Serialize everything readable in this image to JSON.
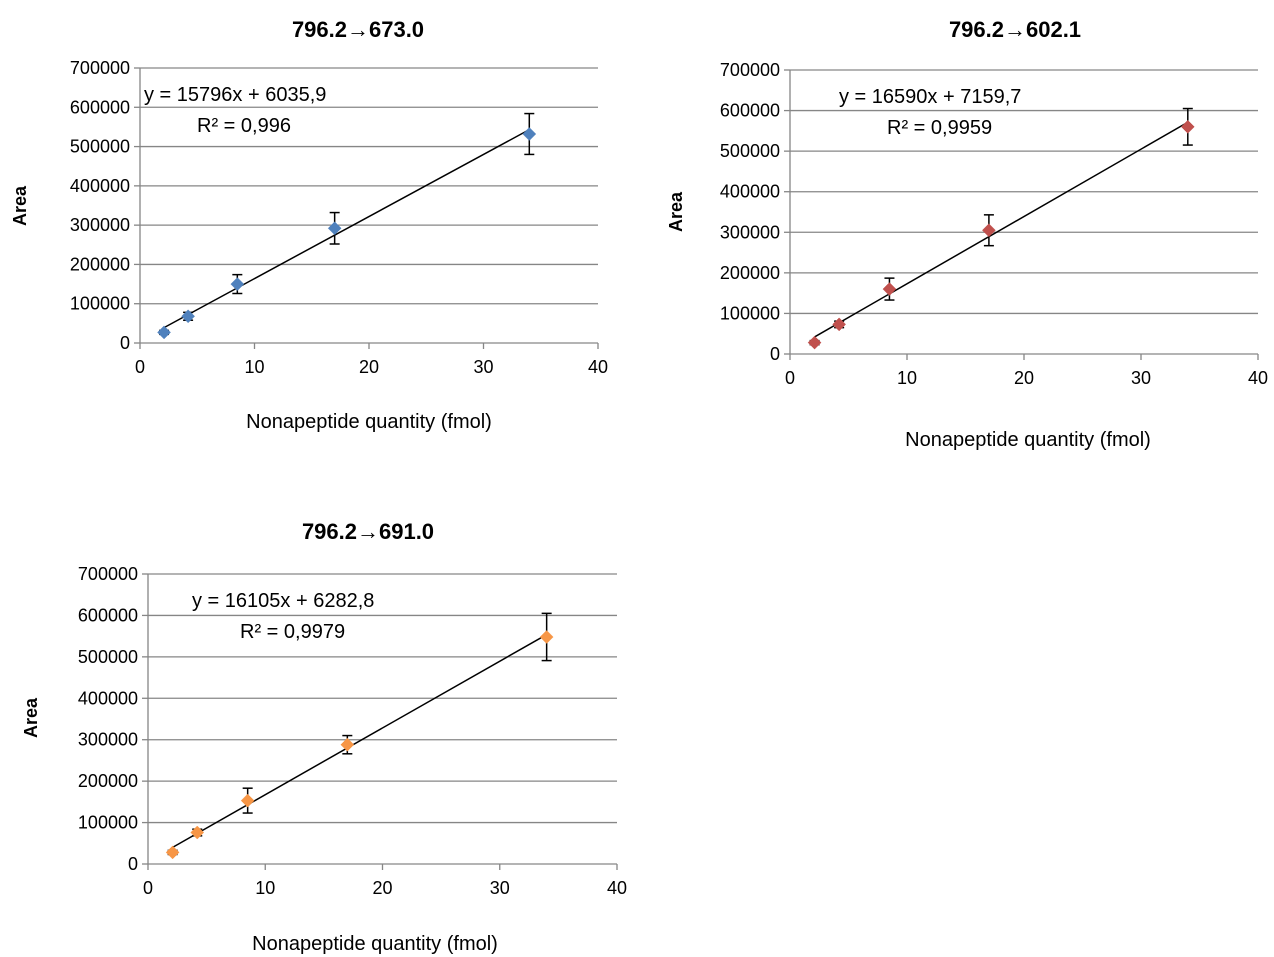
{
  "chart_data": [
    {
      "type": "scatter",
      "title": "796.2→673.0",
      "xlabel": "Nonapeptide quantity (fmol)",
      "ylabel": "Area",
      "xlim": [
        0,
        40
      ],
      "ylim": [
        0,
        700000
      ],
      "x_ticks": [
        "0",
        "10",
        "20",
        "30",
        "40"
      ],
      "y_ticks": [
        "0",
        "100000",
        "200000",
        "300000",
        "400000",
        "500000",
        "600000",
        "700000"
      ],
      "grid": true,
      "marker_color": "#4F81BD",
      "series": [
        {
          "x": [
            2.1,
            4.2,
            8.5,
            17,
            34
          ],
          "y": [
            27000,
            68000,
            150000,
            292000,
            532000
          ],
          "error": [
            5000,
            10000,
            24000,
            40000,
            52000
          ]
        }
      ],
      "trendline": {
        "slope": 15796,
        "intercept": 6035.9,
        "x_range": [
          2.1,
          34
        ]
      },
      "annotations": [
        "y = 15796x + 6035,9",
        "R² = 0,996"
      ]
    },
    {
      "type": "scatter",
      "title": "796.2→602.1",
      "xlabel": "Nonapeptide quantity (fmol)",
      "ylabel": "Area",
      "xlim": [
        0,
        40
      ],
      "ylim": [
        0,
        700000
      ],
      "x_ticks": [
        "0",
        "10",
        "20",
        "30",
        "40"
      ],
      "y_ticks": [
        "0",
        "100000",
        "200000",
        "300000",
        "400000",
        "500000",
        "600000",
        "700000"
      ],
      "grid": true,
      "marker_color": "#C0504D",
      "series": [
        {
          "x": [
            2.1,
            4.2,
            8.5,
            17,
            34
          ],
          "y": [
            28000,
            73000,
            160000,
            305000,
            560000
          ],
          "error": [
            5000,
            8000,
            27000,
            38000,
            45000
          ]
        }
      ],
      "trendline": {
        "slope": 16590,
        "intercept": 7159.7,
        "x_range": [
          2.1,
          34
        ]
      },
      "annotations": [
        "y = 16590x + 7159,7",
        "R² = 0,9959"
      ]
    },
    {
      "type": "scatter",
      "title": "796.2→691.0",
      "xlabel": "Nonapeptide quantity (fmol)",
      "ylabel": "Area",
      "xlim": [
        0,
        40
      ],
      "ylim": [
        0,
        700000
      ],
      "x_ticks": [
        "0",
        "10",
        "20",
        "30",
        "40"
      ],
      "y_ticks": [
        "0",
        "100000",
        "200000",
        "300000",
        "400000",
        "500000",
        "600000",
        "700000"
      ],
      "grid": true,
      "marker_color": "#F79646",
      "series": [
        {
          "x": [
            2.1,
            4.2,
            8.5,
            17,
            34
          ],
          "y": [
            28000,
            76000,
            153000,
            288000,
            548000
          ],
          "error": [
            5000,
            8000,
            30000,
            22000,
            57000
          ]
        }
      ],
      "trendline": {
        "slope": 16105,
        "intercept": 6282.8,
        "x_range": [
          2.1,
          34
        ]
      },
      "annotations": [
        "y = 16105x + 6282,8",
        "R² = 0,9979"
      ]
    }
  ]
}
